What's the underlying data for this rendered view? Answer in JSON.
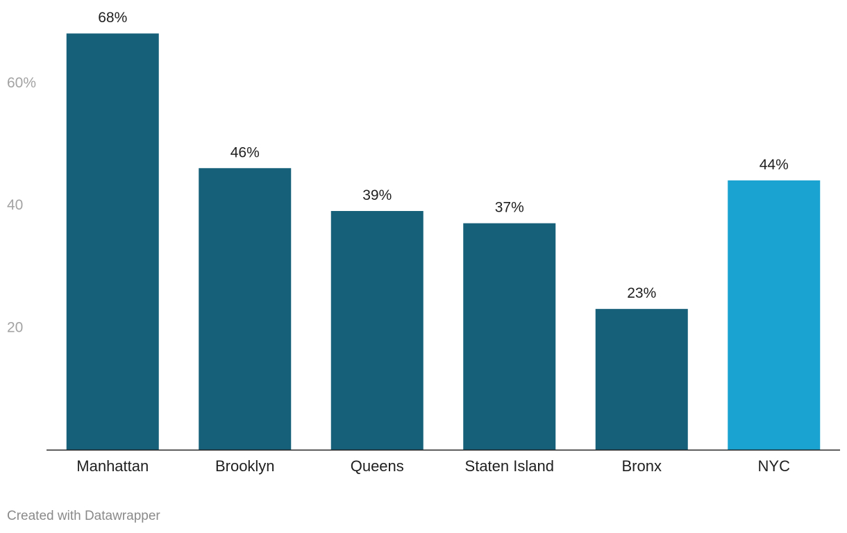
{
  "chart_data": {
    "type": "bar",
    "categories": [
      "Manhattan",
      "Brooklyn",
      "Queens",
      "Staten Island",
      "Bronx",
      "NYC"
    ],
    "values": [
      68,
      46,
      39,
      37,
      23,
      44
    ],
    "data_labels": [
      "68%",
      "46%",
      "39%",
      "37%",
      "23%",
      "44%"
    ],
    "ylim": [
      0,
      70
    ],
    "yticks": [
      {
        "value": 20,
        "label": "20"
      },
      {
        "value": 40,
        "label": "40"
      },
      {
        "value": 60,
        "label": "60%"
      }
    ],
    "grid": false,
    "bar_color": "#17607a",
    "highlight_color": "#1aa3d0",
    "highlight_category": "NYC",
    "axis_color": "#222222"
  },
  "footer": {
    "credit": "Created with Datawrapper"
  }
}
